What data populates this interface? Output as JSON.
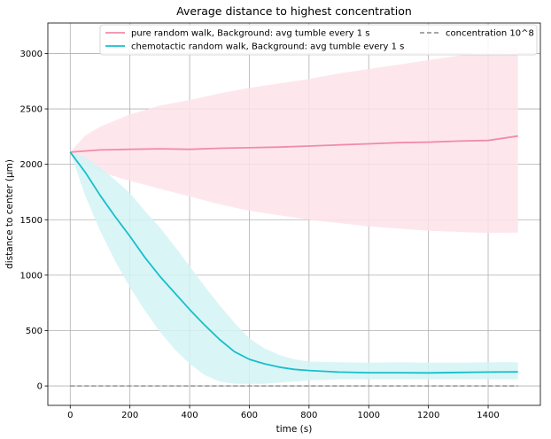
{
  "chart_data": {
    "type": "line",
    "title": "Average distance to highest concentration",
    "xlabel": "time (s)",
    "ylabel": "distance to center (µm)",
    "xlim": [
      -75,
      1575
    ],
    "ylim": [
      -175,
      3275
    ],
    "xticks": [
      0,
      200,
      400,
      600,
      800,
      1000,
      1200,
      1400
    ],
    "yticks": [
      0,
      500,
      1000,
      1500,
      2000,
      2500,
      3000
    ],
    "grid": true,
    "legend": {
      "placement": "top-right",
      "columns": 2
    },
    "series": [
      {
        "name": "pure random walk, Background: avg tumble every 1 s",
        "color": "#f08ca8",
        "band_color": "#fde3ea",
        "style": "solid",
        "x": [
          0,
          50,
          100,
          200,
          300,
          400,
          500,
          600,
          700,
          800,
          900,
          1000,
          1100,
          1200,
          1300,
          1400,
          1500
        ],
        "y": [
          2110,
          2120,
          2130,
          2135,
          2140,
          2135,
          2145,
          2150,
          2155,
          2165,
          2175,
          2185,
          2195,
          2200,
          2210,
          2215,
          2255
        ],
        "lower": [
          2110,
          1990,
          1930,
          1850,
          1780,
          1710,
          1640,
          1580,
          1540,
          1500,
          1470,
          1440,
          1420,
          1400,
          1390,
          1380,
          1385
        ],
        "upper": [
          2110,
          2260,
          2340,
          2450,
          2530,
          2580,
          2640,
          2690,
          2730,
          2770,
          2820,
          2860,
          2900,
          2940,
          2980,
          3020,
          3060
        ]
      },
      {
        "name": "chemotactic random walk, Background: avg tumble every 1 s",
        "color": "#17bfcc",
        "band_color": "#d4f3f5",
        "style": "solid",
        "x": [
          0,
          50,
          100,
          150,
          200,
          250,
          300,
          350,
          400,
          450,
          500,
          550,
          600,
          650,
          700,
          750,
          800,
          900,
          1000,
          1100,
          1200,
          1300,
          1400,
          1500
        ],
        "y": [
          2110,
          1930,
          1720,
          1530,
          1350,
          1160,
          990,
          840,
          690,
          550,
          420,
          310,
          240,
          200,
          170,
          150,
          140,
          125,
          120,
          120,
          118,
          122,
          125,
          128
        ],
        "lower": [
          2110,
          1720,
          1400,
          1130,
          890,
          680,
          490,
          330,
          200,
          100,
          40,
          20,
          20,
          20,
          30,
          40,
          50,
          60,
          60,
          60,
          60,
          60,
          60,
          60
        ],
        "upper": [
          2110,
          2070,
          1970,
          1860,
          1740,
          1580,
          1430,
          1260,
          1080,
          900,
          730,
          570,
          430,
          340,
          280,
          240,
          220,
          215,
          210,
          215,
          210,
          210,
          215,
          215
        ]
      },
      {
        "name": "concentration 10^8",
        "color": "#888888",
        "style": "dashed",
        "x": [
          0,
          1500
        ],
        "y": [
          0,
          0
        ]
      }
    ]
  }
}
